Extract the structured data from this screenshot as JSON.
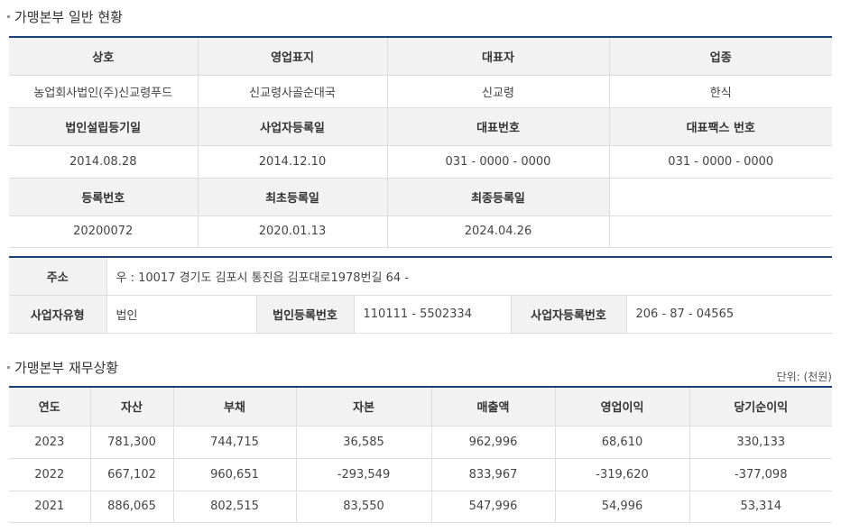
{
  "general": {
    "title": "가맹본부 일반 현황",
    "r1h": [
      "상호",
      "영업표지",
      "대표자",
      "업종"
    ],
    "r1v": [
      "농업회사법인(주)신교령푸드",
      "신교령사골순대국",
      "신교령",
      "한식"
    ],
    "r2h": [
      "법인설립등기일",
      "사업자등록일",
      "대표번호",
      "대표팩스 번호"
    ],
    "r2v": [
      "2014.08.28",
      "2014.12.10",
      "031 - 0000 - 0000",
      "031 - 0000 - 0000"
    ],
    "r3h": [
      "등록번호",
      "최초등록일",
      "최종등록일",
      ""
    ],
    "r3v": [
      "20200072",
      "2020.01.13",
      "2024.04.26",
      ""
    ]
  },
  "address": {
    "label": "주소",
    "value": "우 : 10017 경기도 김포시 통진읍 김포대로1978번길 64 -",
    "biz_type_label": "사업자유형",
    "biz_type": "법인",
    "corp_reg_label": "법인등록번호",
    "corp_reg": "110111 - 5502334",
    "biz_reg_label": "사업자등록번호",
    "biz_reg": "206 - 87 - 04565"
  },
  "finance": {
    "title": "가맹본부 재무상황",
    "unit": "단위: (천원)",
    "headers": [
      "연도",
      "자산",
      "부채",
      "자본",
      "매출액",
      "영업이익",
      "당기순이익"
    ],
    "rows": [
      [
        "2023",
        "781,300",
        "744,715",
        "36,585",
        "962,996",
        "68,610",
        "330,133"
      ],
      [
        "2022",
        "667,102",
        "960,651",
        "-293,549",
        "833,967",
        "-319,620",
        "-377,098"
      ],
      [
        "2021",
        "886,065",
        "802,515",
        "83,550",
        "547,996",
        "54,996",
        "53,314"
      ]
    ]
  }
}
